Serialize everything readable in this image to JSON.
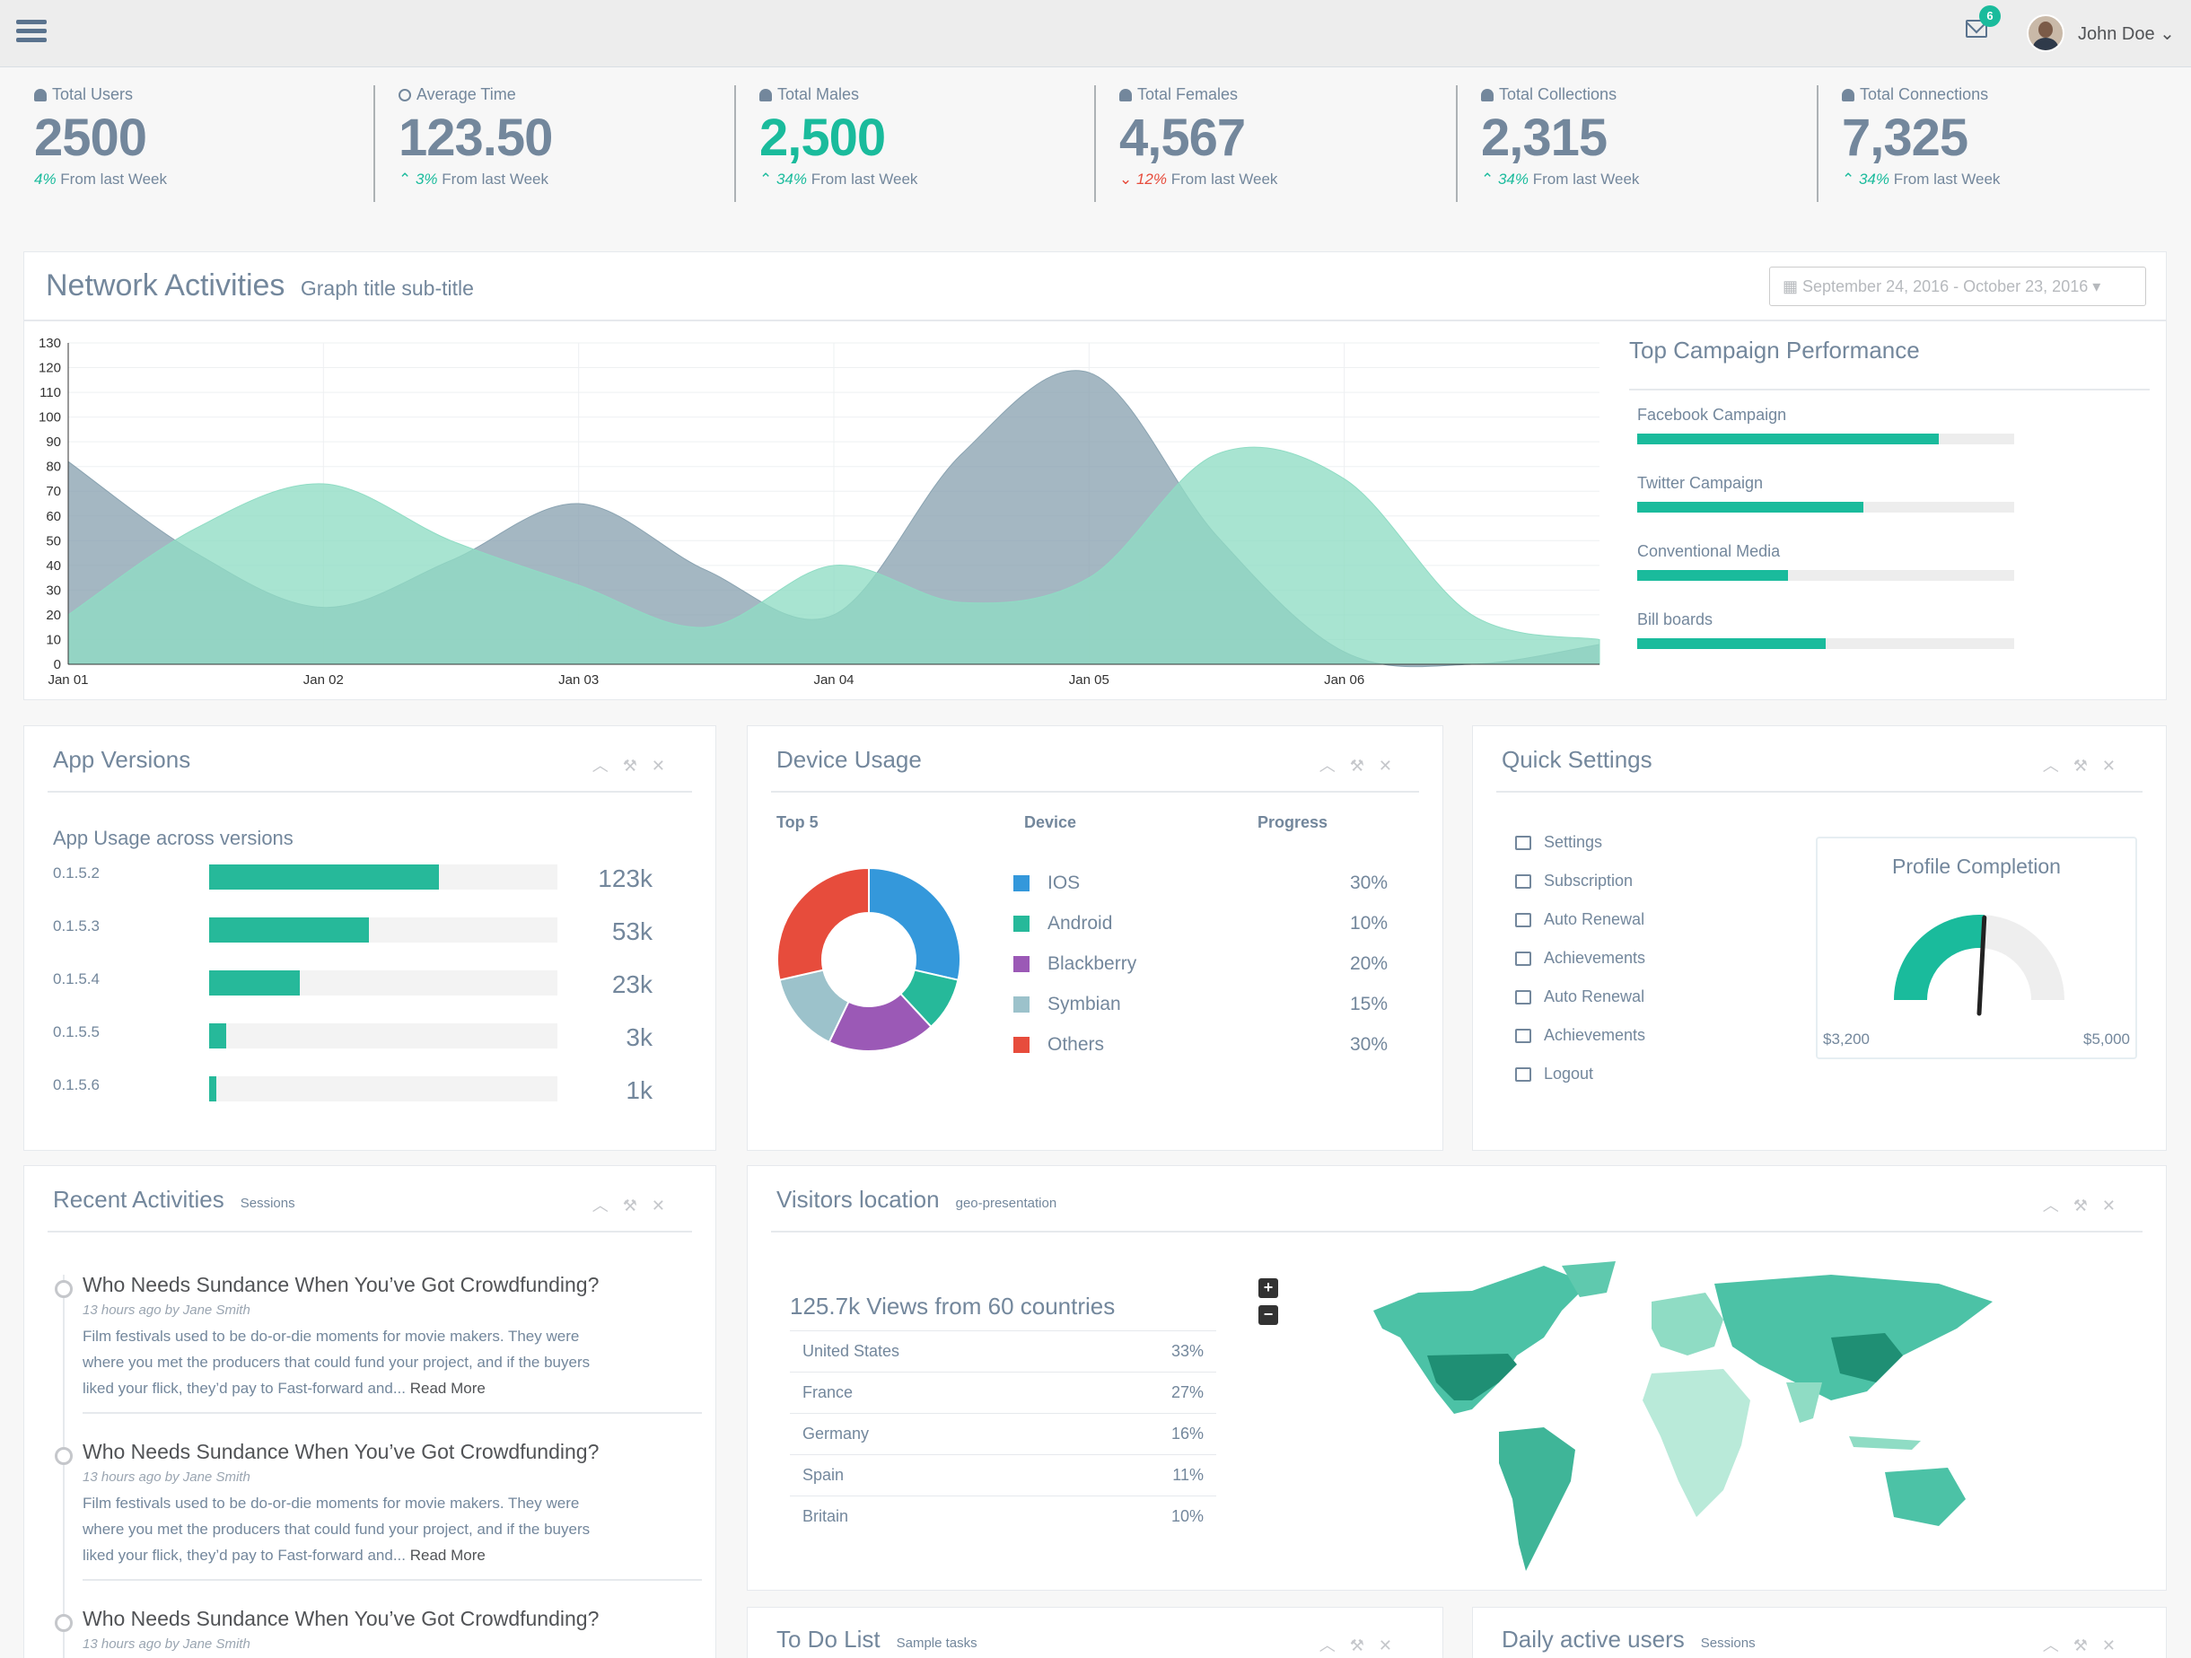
{
  "header": {
    "notification_count": "6",
    "user_name": "John Doe ⌄"
  },
  "tiles": [
    {
      "label": "Total Users",
      "value": "2500",
      "change": "4%",
      "suffix": " From last Week",
      "trend": "up",
      "highlight": false
    },
    {
      "label": "Average Time",
      "value": "123.50",
      "change": "3%",
      "suffix": " From last Week",
      "trend": "up",
      "highlight": false
    },
    {
      "label": "Total Males",
      "value": "2,500",
      "change": "34%",
      "suffix": " From last Week",
      "trend": "up",
      "highlight": true
    },
    {
      "label": "Total Females",
      "value": "4,567",
      "change": "12%",
      "suffix": " From last Week",
      "trend": "down",
      "highlight": false
    },
    {
      "label": "Total Collections",
      "value": "2,315",
      "change": "34%",
      "suffix": " From last Week",
      "trend": "up",
      "highlight": false
    },
    {
      "label": "Total Connections",
      "value": "7,325",
      "change": "34%",
      "suffix": " From last Week",
      "trend": "up",
      "highlight": false
    }
  ],
  "network": {
    "title": "Network Activities",
    "subtitle": "Graph title sub-title",
    "date_range": "September 24, 2016 - October 23, 2016 ▾"
  },
  "chart_data": {
    "type": "area",
    "categories": [
      "Jan 01",
      "Jan 02",
      "Jan 03",
      "Jan 04",
      "Jan 05",
      "Jan 06"
    ],
    "ylim": [
      0,
      130
    ],
    "yticks": [
      0,
      10,
      20,
      30,
      40,
      50,
      60,
      70,
      80,
      90,
      100,
      110,
      120,
      130
    ],
    "x": [
      0,
      0.5,
      1,
      1.5,
      2,
      2.5,
      3,
      3.5,
      4,
      4.5,
      5,
      5.5,
      6
    ],
    "series": [
      {
        "color": "#8aa3b1",
        "values": [
          82,
          45,
          23,
          42,
          65,
          38,
          20,
          85,
          118,
          52,
          5,
          0,
          8
        ]
      },
      {
        "color": "#8fdcc4",
        "values": [
          20,
          55,
          73,
          50,
          32,
          15,
          40,
          25,
          35,
          85,
          75,
          20,
          10
        ]
      }
    ]
  },
  "campaign": {
    "title": "Top Campaign Performance",
    "items": [
      {
        "label": "Facebook Campaign",
        "value": 80
      },
      {
        "label": "Twitter Campaign",
        "value": 60
      },
      {
        "label": "Conventional Media",
        "value": 40
      },
      {
        "label": "Bill boards",
        "value": 50
      }
    ]
  },
  "app_versions": {
    "title": "App Versions",
    "subtitle": "App Usage across versions",
    "rows": [
      {
        "version": "0.1.5.2",
        "value": "123k",
        "pct": 66
      },
      {
        "version": "0.1.5.3",
        "value": "53k",
        "pct": 46
      },
      {
        "version": "0.1.5.4",
        "value": "23k",
        "pct": 26
      },
      {
        "version": "0.1.5.5",
        "value": "3k",
        "pct": 5
      },
      {
        "version": "0.1.5.6",
        "value": "1k",
        "pct": 2
      }
    ]
  },
  "device_usage": {
    "title": "Device Usage",
    "col_top": "Top 5",
    "col_device": "Device",
    "col_progress": "Progress",
    "rows": [
      {
        "name": "IOS",
        "pct": "30%",
        "color": "#3498db",
        "value": 30
      },
      {
        "name": "Android",
        "pct": "10%",
        "color": "#26b99a",
        "value": 10
      },
      {
        "name": "Blackberry",
        "pct": "20%",
        "color": "#9b59b6",
        "value": 20
      },
      {
        "name": "Symbian",
        "pct": "15%",
        "color": "#9cc2cb",
        "value": 15
      },
      {
        "name": "Others",
        "pct": "30%",
        "color": "#e74c3c",
        "value": 30
      }
    ]
  },
  "quick_settings": {
    "title": "Quick Settings",
    "items": [
      "Settings",
      "Subscription",
      "Auto Renewal",
      "Achievements",
      "Auto Renewal",
      "Achievements",
      "Logout"
    ],
    "profile_title": "Profile Completion",
    "gauge_min": "$3,200",
    "gauge_max": "$5,000",
    "gauge_value": 0.52
  },
  "recent": {
    "title": "Recent Activities",
    "subtitle": "Sessions",
    "items": [
      {
        "heading": "Who Needs Sundance When You’ve Got Crowdfunding?",
        "meta": "13 hours ago by Jane Smith",
        "line1": "Film festivals used to be do-or-die moments for movie makers. They were",
        "line2": "where you met the producers that could fund your project, and if the buyers",
        "line3": "liked your flick, they’d pay to Fast-forward and... ",
        "more": "Read More"
      },
      {
        "heading": "Who Needs Sundance When You’ve Got Crowdfunding?",
        "meta": "13 hours ago by Jane Smith",
        "line1": "Film festivals used to be do-or-die moments for movie makers. They were",
        "line2": "where you met the producers that could fund your project, and if the buyers",
        "line3": "liked your flick, they’d pay to Fast-forward and... ",
        "more": "Read More"
      },
      {
        "heading": "Who Needs Sundance When You’ve Got Crowdfunding?",
        "meta": "13 hours ago by Jane Smith"
      }
    ]
  },
  "visitors": {
    "title": "Visitors location",
    "subtitle": "geo-presentation",
    "summary": "125.7k Views from 60 countries",
    "rows": [
      {
        "country": "United States",
        "pct": "33%"
      },
      {
        "country": "France",
        "pct": "27%"
      },
      {
        "country": "Germany",
        "pct": "16%"
      },
      {
        "country": "Spain",
        "pct": "11%"
      },
      {
        "country": "Britain",
        "pct": "10%"
      }
    ],
    "zoom_in": "+",
    "zoom_out": "−"
  },
  "todo": {
    "title": "To Do List",
    "subtitle": "Sample tasks"
  },
  "daily": {
    "title": "Daily active users",
    "subtitle": "Sessions"
  }
}
